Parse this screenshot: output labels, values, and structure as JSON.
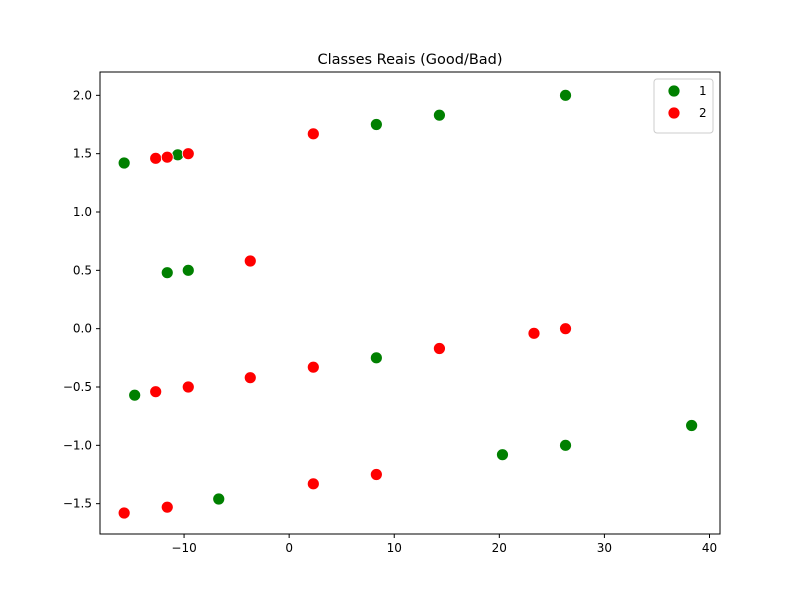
{
  "chart_data": {
    "type": "scatter",
    "title": "Classes Reais (Good/Bad)",
    "xlabel": "",
    "ylabel": "",
    "xlim": [
      -18,
      41
    ],
    "ylim": [
      -1.76,
      2.2
    ],
    "xticks": [
      -10,
      0,
      10,
      20,
      30,
      40
    ],
    "yticks": [
      -1.5,
      -1.0,
      -0.5,
      0.0,
      0.5,
      1.0,
      1.5,
      2.0
    ],
    "xtick_labels": [
      "−10",
      "0",
      "10",
      "20",
      "30",
      "40"
    ],
    "ytick_labels": [
      "−1.5",
      "−1.0",
      "−0.5",
      "0.0",
      "0.5",
      "1.0",
      "1.5",
      "2.0"
    ],
    "grid": false,
    "legend_position": "top-right",
    "series": [
      {
        "name": "1",
        "color": "#008000",
        "points": [
          {
            "x": -15.7,
            "y": 1.42
          },
          {
            "x": -10.6,
            "y": 1.49
          },
          {
            "x": 8.3,
            "y": 1.75
          },
          {
            "x": 14.3,
            "y": 1.83
          },
          {
            "x": 26.3,
            "y": 2.0
          },
          {
            "x": -11.6,
            "y": 0.48
          },
          {
            "x": -9.6,
            "y": 0.5
          },
          {
            "x": 8.3,
            "y": -0.25
          },
          {
            "x": -14.7,
            "y": -0.57
          },
          {
            "x": 20.3,
            "y": -1.08
          },
          {
            "x": 26.3,
            "y": -1.0
          },
          {
            "x": 38.3,
            "y": -0.83
          },
          {
            "x": -6.7,
            "y": -1.46
          }
        ]
      },
      {
        "name": "2",
        "color": "#ff0000",
        "points": [
          {
            "x": -12.7,
            "y": 1.46
          },
          {
            "x": -11.6,
            "y": 1.47
          },
          {
            "x": -9.6,
            "y": 1.5
          },
          {
            "x": 2.3,
            "y": 1.67
          },
          {
            "x": -3.7,
            "y": 0.58
          },
          {
            "x": 23.3,
            "y": -0.04
          },
          {
            "x": 26.3,
            "y": 0.0
          },
          {
            "x": 14.3,
            "y": -0.17
          },
          {
            "x": 2.3,
            "y": -0.33
          },
          {
            "x": -3.7,
            "y": -0.42
          },
          {
            "x": -9.6,
            "y": -0.5
          },
          {
            "x": -12.7,
            "y": -0.54
          },
          {
            "x": 8.3,
            "y": -1.25
          },
          {
            "x": 2.3,
            "y": -1.33
          },
          {
            "x": -11.6,
            "y": -1.53
          },
          {
            "x": -15.7,
            "y": -1.58
          }
        ]
      }
    ]
  }
}
